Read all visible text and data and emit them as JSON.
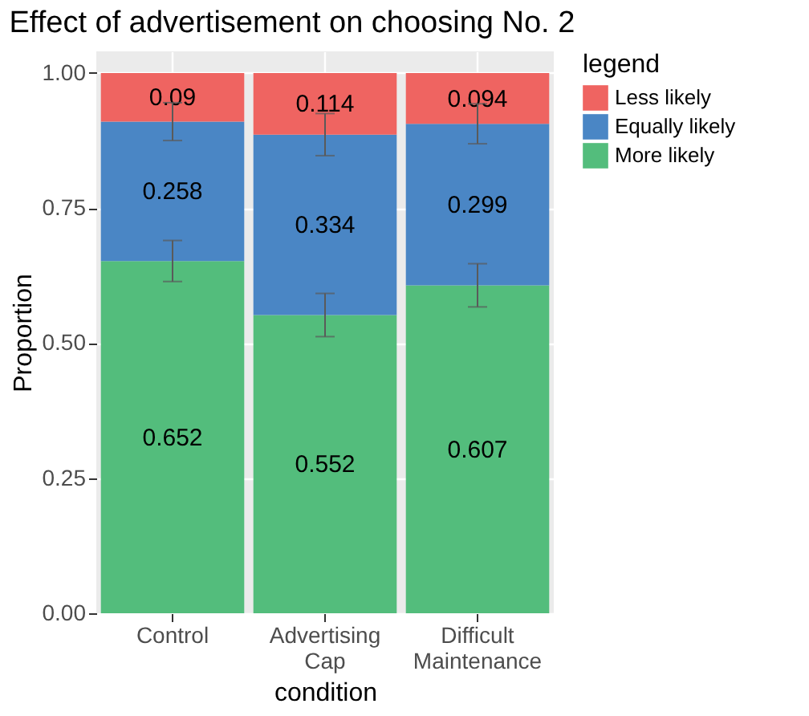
{
  "chart_data": {
    "type": "bar",
    "title": "Effect of advertisement on choosing No. 2",
    "xlabel": "condition",
    "ylabel": "Proportion",
    "legend_title": "legend",
    "categories": [
      "Control",
      "Advertising Cap",
      "Difficult Maintenance"
    ],
    "stacked": true,
    "data_labels": true,
    "grid": true,
    "legend": "right",
    "ylim": [
      0,
      1.04
    ],
    "yticks": [
      {
        "value": 0,
        "label": "0.00"
      },
      {
        "value": 0.25,
        "label": "0.25"
      },
      {
        "value": 0.5,
        "label": "0.50"
      },
      {
        "value": 0.75,
        "label": "0.75"
      },
      {
        "value": 1,
        "label": "1.00"
      }
    ],
    "series": [
      {
        "name": "More likely",
        "color": "#53bd7c",
        "values": [
          0.652,
          0.552,
          0.607
        ],
        "errors": [
          0.038,
          0.04,
          0.04
        ]
      },
      {
        "name": "Equally likely",
        "color": "#4a86c5",
        "values": [
          0.258,
          0.334,
          0.299
        ],
        "errors": [
          0.035,
          0.039,
          0.037
        ]
      },
      {
        "name": "Less likely",
        "color": "#ef6461",
        "values": [
          0.09,
          0.114,
          0.094
        ]
      }
    ]
  }
}
